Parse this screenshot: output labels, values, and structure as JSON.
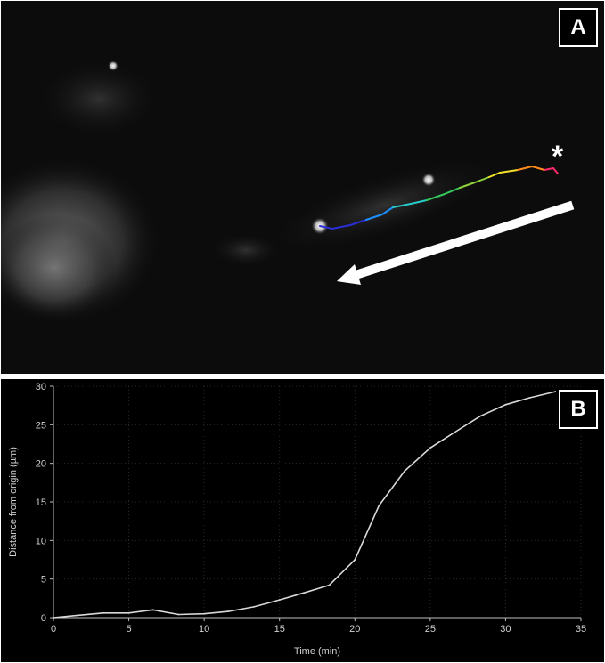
{
  "panel_a": {
    "label": "A",
    "asterisk": "*"
  },
  "panel_b": {
    "label": "B"
  },
  "colors": {
    "track_gradient": [
      "#2a2fd6",
      "#1e90ff",
      "#27c9c9",
      "#34c759",
      "#8fd13a",
      "#f2e12b",
      "#ff8a1c",
      "#ff2a6d"
    ],
    "arrow": "#ffffff",
    "plot_line": "#d9d9d9",
    "plot_background": "#000000",
    "axis": "#bfbfbf"
  },
  "chart_data": {
    "type": "line",
    "xlabel": "Time (min)",
    "ylabel": "Distance from origin (µm)",
    "xlim": [
      0,
      35
    ],
    "ylim": [
      0,
      30
    ],
    "xticks": [
      0,
      5,
      10,
      15,
      20,
      25,
      30,
      35
    ],
    "yticks": [
      0,
      5,
      10,
      15,
      20,
      25,
      30
    ],
    "grid": true,
    "series": [
      {
        "x": [
          0,
          1.6,
          3.3,
          5.0,
          6.6,
          8.3,
          10.0,
          11.6,
          13.3,
          15.0,
          16.6,
          18.3,
          20.0,
          21.6,
          23.3,
          25.0,
          26.6,
          28.3,
          30.0,
          31.6,
          33.3
        ],
        "values": [
          0,
          0.3,
          0.6,
          0.6,
          1.0,
          0.4,
          0.5,
          0.8,
          1.4,
          2.3,
          3.2,
          4.2,
          7.5,
          14.5,
          19.0,
          22.0,
          24.0,
          26.1,
          27.6,
          28.5,
          29.3
        ]
      }
    ]
  }
}
